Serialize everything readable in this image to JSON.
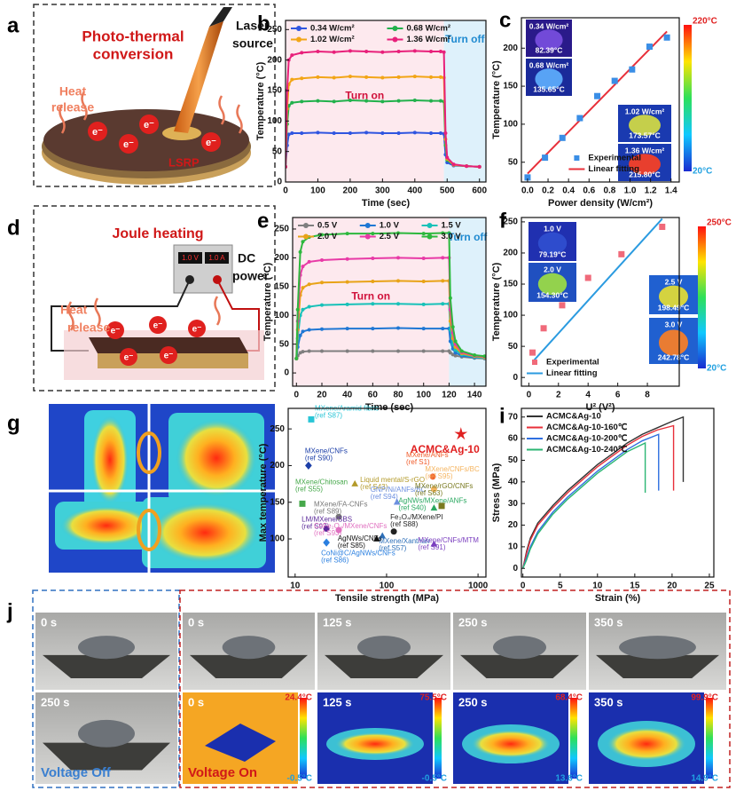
{
  "panel_letters": [
    "a",
    "b",
    "c",
    "d",
    "e",
    "f",
    "g",
    "h",
    "i",
    "j"
  ],
  "panel_a": {
    "title_lines": [
      "Photo-thermal",
      "conversion"
    ],
    "laser_lines": [
      "Laser",
      "source"
    ],
    "heat_lines": [
      "Heat",
      "release"
    ],
    "lsrp": "LSRP",
    "electron": "e⁻"
  },
  "panel_d": {
    "title": "Joule heating",
    "power_lines": [
      "DC",
      "power"
    ],
    "heat_lines": [
      "Heat",
      "release"
    ],
    "voltage": "1.0 V",
    "current": "1.0 A",
    "electron": "e⁻"
  },
  "panel_j": {
    "photos": [
      "0 s",
      "0 s",
      "125 s",
      "250 s",
      "350 s",
      "250 s"
    ],
    "voltage_off": "Voltage Off",
    "voltage_on": "Voltage On",
    "thermal": [
      {
        "time": "0 s",
        "max": "24.4°C",
        "min": "-0.5°C"
      },
      {
        "time": "125 s",
        "max": "75.5°C",
        "min": "-0.5°C"
      },
      {
        "time": "250 s",
        "max": "68.4°C",
        "min": "13.6°C"
      },
      {
        "time": "350 s",
        "max": "99.9°C",
        "min": "14.9°C"
      }
    ]
  },
  "chart_data": [
    {
      "type": "line",
      "markers": true,
      "xlabel": "Time (sec)",
      "ylabel": "Temperature (°C)",
      "xlim": [
        0,
        620
      ],
      "ylim": [
        0,
        265
      ],
      "xticks": [
        0,
        100,
        200,
        300,
        400,
        500,
        600
      ],
      "yticks": [
        0,
        50,
        100,
        150,
        200,
        250
      ],
      "legend": "upper left",
      "legend_columns": 2,
      "regions": [
        {
          "label": "Turn on",
          "from": 0,
          "to": 490,
          "color": "#fde9ee",
          "text_color": "#d0103a"
        },
        {
          "label": "Turn off",
          "from": 490,
          "to": 620,
          "color": "#def1fb",
          "text_color": "#1f8ad0"
        }
      ],
      "x": [
        0,
        5,
        10,
        20,
        50,
        100,
        150,
        200,
        250,
        300,
        350,
        400,
        450,
        480,
        490,
        495,
        500,
        520,
        560,
        600
      ],
      "series": [
        {
          "name": "0.34 W/cm²",
          "color": "#2f55e0",
          "values": [
            25,
            60,
            78,
            80,
            80,
            81,
            80,
            80,
            81,
            80,
            80,
            81,
            80,
            80,
            79,
            45,
            32,
            27,
            26,
            25
          ]
        },
        {
          "name": "0.68 W/cm²",
          "color": "#22b14c",
          "values": [
            25,
            95,
            125,
            130,
            132,
            133,
            132,
            134,
            133,
            132,
            133,
            134,
            133,
            133,
            132,
            60,
            36,
            28,
            26,
            25
          ]
        },
        {
          "name": "1.02 W/cm²",
          "color": "#f2a516",
          "values": [
            25,
            120,
            160,
            168,
            170,
            172,
            171,
            173,
            172,
            171,
            172,
            173,
            172,
            172,
            171,
            70,
            38,
            28,
            26,
            25
          ]
        },
        {
          "name": "1.36 W/cm²",
          "color": "#e8207a",
          "values": [
            25,
            150,
            200,
            208,
            212,
            214,
            213,
            215,
            214,
            213,
            214,
            215,
            214,
            214,
            213,
            80,
            40,
            29,
            26,
            25
          ]
        }
      ]
    },
    {
      "type": "scatter",
      "xlabel": "Power density (W/cm²)",
      "ylabel": "Temperature (°C)",
      "xlim": [
        -0.06,
        1.48
      ],
      "ylim": [
        24,
        240
      ],
      "xticks": [
        {
          "value": 0,
          "label": "0.0"
        },
        0.2,
        0.4,
        0.6,
        0.8,
        {
          "value": 1,
          "label": "1.0"
        },
        1.2,
        1.4
      ],
      "yticks": [
        50,
        100,
        150,
        200
      ],
      "legend": "lower center",
      "legend_columns": 1,
      "series": [
        {
          "name": "Experimental",
          "color": "#3a8ee6",
          "mode": "markers",
          "marker": "square",
          "x": [
            0,
            0.17,
            0.34,
            0.51,
            0.68,
            0.85,
            1.02,
            1.19,
            1.36
          ],
          "values": [
            30,
            56,
            82,
            108,
            137,
            157,
            172,
            202,
            214
          ]
        },
        {
          "name": "Linear fitting",
          "color": "#e8303a",
          "mode": "line",
          "x": [
            0,
            1.36
          ],
          "values": [
            35,
            222
          ]
        }
      ],
      "insets": [
        {
          "label": "0.34 W/cm²",
          "temp": "82.39°C"
        },
        {
          "label": "0.68 W/cm²",
          "temp": "135.65°C"
        },
        {
          "label": "1.02 W/cm²",
          "temp": "173.57°C"
        },
        {
          "label": "1.36 W/cm²",
          "temp": "215.80°C"
        }
      ],
      "colorbar": {
        "max": "220°C",
        "min": "20°C"
      }
    },
    {
      "type": "line",
      "markers": true,
      "xlabel": "Time (sec)",
      "ylabel": "Temperature (°C)",
      "xlim": [
        -3,
        149
      ],
      "ylim": [
        -23,
        270
      ],
      "xticks": [
        0,
        20,
        40,
        60,
        80,
        100,
        120,
        140
      ],
      "yticks": [
        0,
        50,
        100,
        150,
        200,
        250
      ],
      "legend": "upper left",
      "legend_columns": 3,
      "regions": [
        {
          "label": "Turn on",
          "from": -3,
          "to": 120,
          "color": "#fde9ee",
          "text_color": "#d0103a"
        },
        {
          "label": "Turn off",
          "from": 120,
          "to": 149,
          "color": "#def1fb",
          "text_color": "#1f8ad0"
        }
      ],
      "x": [
        0,
        1,
        3,
        5,
        10,
        20,
        40,
        60,
        80,
        100,
        115,
        120,
        121,
        123,
        125,
        130,
        140,
        148
      ],
      "series": [
        {
          "name": "0.5 V",
          "color": "#7f7f7f",
          "values": [
            25,
            30,
            35,
            37,
            38,
            38,
            38,
            38,
            38,
            38,
            38,
            38,
            35,
            32,
            30,
            28,
            26,
            25
          ]
        },
        {
          "name": "1.0 V",
          "color": "#1f77d4",
          "values": [
            25,
            45,
            65,
            72,
            75,
            76,
            77,
            77,
            78,
            77,
            77,
            77,
            55,
            42,
            35,
            30,
            27,
            26
          ]
        },
        {
          "name": "1.5 V",
          "color": "#17c1b8",
          "values": [
            25,
            60,
            100,
            110,
            115,
            118,
            119,
            120,
            120,
            119,
            120,
            120,
            75,
            50,
            40,
            32,
            28,
            26
          ]
        },
        {
          "name": "2.0 V",
          "color": "#e8a317",
          "values": [
            25,
            75,
            135,
            148,
            154,
            157,
            158,
            159,
            160,
            159,
            160,
            160,
            90,
            60,
            45,
            34,
            29,
            27
          ]
        },
        {
          "name": "2.5 V",
          "color": "#e83aa6",
          "values": [
            25,
            90,
            170,
            185,
            193,
            196,
            198,
            199,
            200,
            199,
            200,
            200,
            110,
            70,
            50,
            36,
            30,
            28
          ]
        },
        {
          "name": "3.0 V",
          "color": "#2db83d",
          "values": [
            25,
            110,
            210,
            228,
            236,
            240,
            242,
            242,
            243,
            242,
            243,
            243,
            130,
            80,
            55,
            38,
            31,
            29
          ]
        }
      ]
    },
    {
      "type": "scatter",
      "xlabel": "U² (V²)",
      "ylabel": "Temperature (°C)",
      "xlim": [
        -0.5,
        10.15
      ],
      "ylim": [
        -14,
        257
      ],
      "xticks": [
        0,
        2,
        4,
        6,
        8
      ],
      "yticks": [
        0,
        50,
        100,
        150,
        200,
        250
      ],
      "legend": "lower left",
      "legend_columns": 1,
      "series": [
        {
          "name": "Experimental",
          "color": "#f06a7a",
          "mode": "markers",
          "marker": "square",
          "x": [
            0.25,
            1,
            2.25,
            4,
            6.25,
            9
          ],
          "values": [
            40,
            79,
            116,
            160,
            198,
            242
          ]
        },
        {
          "name": "Linear fitting",
          "color": "#2b9be0",
          "mode": "line",
          "x": [
            0.25,
            9
          ],
          "values": [
            25,
            255
          ]
        }
      ],
      "insets": [
        {
          "label": "1.0 V",
          "temp": "79.19°C"
        },
        {
          "label": "2.0 V",
          "temp": "154.30°C"
        },
        {
          "label": "2.5 V",
          "temp": "198.49°C"
        },
        {
          "label": "3.0 V",
          "temp": "242.78°C"
        }
      ],
      "colorbar": {
        "max": "250°C",
        "min": "20°C"
      }
    },
    {
      "type": "scatter",
      "xscale": "log",
      "xlabel": "Tensile strength (MPa)",
      "ylabel": "Max temperature (°C)",
      "xlim": [
        8.4,
        1220
      ],
      "ylim": [
        48,
        278
      ],
      "xticks": [
        10,
        100,
        1000
      ],
      "yticks": [
        100,
        150,
        200,
        250
      ],
      "series": [
        {
          "name": "MXene/Aramid fibric",
          "ref": "(ref S87)",
          "color": "#29c5d6",
          "mode": "markers",
          "marker": "square",
          "x": [
            15
          ],
          "values": [
            263
          ]
        },
        {
          "name": "MXene/CNFs",
          "ref": "(ref S90)",
          "color": "#1c3fa8",
          "mode": "markers",
          "marker": "diamond",
          "x": [
            14
          ],
          "values": [
            200
          ]
        },
        {
          "name": "Liquid mental/S-rGO",
          "ref": "(ref S43)",
          "color": "#b39a2a",
          "mode": "markers",
          "marker": "triangle",
          "x": [
            45
          ],
          "values": [
            175
          ]
        },
        {
          "name": "ACMC&Ag-10",
          "color": "#e02020",
          "mode": "markers",
          "marker": "star",
          "x": [
            650
          ],
          "values": [
            243
          ]
        },
        {
          "name": "MXene/ANFs",
          "ref": "(ref S1)",
          "color": "#f05a28",
          "mode": "markers",
          "marker": "circle",
          "x": [
            320
          ],
          "values": [
            185
          ]
        },
        {
          "name": "MXene/CNFs/BC",
          "ref": "(ref S95)",
          "color": "#f5b561",
          "mode": "markers",
          "marker": "circle",
          "x": [
            330
          ],
          "values": [
            168
          ]
        },
        {
          "name": "GNP/Ni/ANFs/BC",
          "ref": "(ref S94)",
          "color": "#6c8fe0",
          "mode": "markers",
          "marker": "triangle",
          "x": [
            130
          ],
          "values": [
            150
          ]
        },
        {
          "name": "MXene/FA-CNFs",
          "ref": "(ref S89)",
          "color": "#777777",
          "mode": "markers",
          "marker": "circle",
          "x": [
            30
          ],
          "values": [
            130
          ]
        },
        {
          "name": "MXene/Chitosan",
          "ref": "(ref S55)",
          "color": "#46a84a",
          "mode": "markers",
          "marker": "square",
          "x": [
            12
          ],
          "values": [
            148
          ]
        },
        {
          "name": "LM/MXene/SBS",
          "ref": "(ref S92)",
          "color": "#5b2a9a",
          "mode": "markers",
          "marker": "circle",
          "x": [
            22
          ],
          "values": [
            114
          ]
        },
        {
          "name": "CoFe₂O₄/MXene/CNFs",
          "ref": "(ref S93)",
          "color": "#e070c0",
          "mode": "markers",
          "marker": "circle",
          "x": [
            30
          ],
          "values": [
            112
          ]
        },
        {
          "name": "Fe₃O₄/MXene/PI",
          "ref": "(ref S88)",
          "color": "#222222",
          "mode": "markers",
          "marker": "circle",
          "x": [
            120
          ],
          "values": [
            110
          ]
        },
        {
          "name": "MXene/Xanthan",
          "ref": "(ref S57)",
          "color": "#2d6fb8",
          "mode": "markers",
          "marker": "triangle",
          "x": [
            90
          ],
          "values": [
            104
          ]
        },
        {
          "name": "AgNWs/CNFs",
          "ref": "(ref S85)",
          "color": "#111111",
          "mode": "markers",
          "marker": "triangle",
          "x": [
            78
          ],
          "values": [
            100
          ]
        },
        {
          "name": "CoNi@C/AgNWs/CNFs",
          "ref": "(ref S86)",
          "color": "#2a7fe0",
          "mode": "markers",
          "marker": "diamond",
          "x": [
            22
          ],
          "values": [
            95
          ]
        },
        {
          "name": "MXene/rGO/CNFs",
          "ref": "(ref S63)",
          "color": "#7a7a20",
          "mode": "markers",
          "marker": "square",
          "x": [
            400
          ],
          "values": [
            145
          ]
        },
        {
          "name": "AgNWs/MXene/ANFs",
          "ref": "(ref S40)",
          "color": "#2aa860",
          "mode": "markers",
          "marker": "triangle",
          "x": [
            330
          ],
          "values": [
            142
          ]
        },
        {
          "name": "MXene/CNFs/MTM",
          "ref": "(ref S91)",
          "color": "#7b3fbf",
          "mode": "markers",
          "marker": "triangle",
          "x": [
            330
          ],
          "values": [
            93
          ]
        }
      ]
    },
    {
      "type": "line",
      "xlabel": "Strain (%)",
      "ylabel": "Stress (MPa)",
      "xlim": [
        -0.2,
        25.6
      ],
      "ylim": [
        -4,
        74
      ],
      "xticks": [
        0,
        5,
        10,
        15,
        20,
        25
      ],
      "yticks": [
        0,
        10,
        20,
        30,
        40,
        50,
        60,
        70
      ],
      "legend": "upper left",
      "legend_columns": 1,
      "series": [
        {
          "name": "ACMC&Ag-10",
          "color": "#333333",
          "x": [
            0,
            0.5,
            1,
            2,
            4,
            6,
            8,
            10,
            12,
            14,
            16,
            18,
            20,
            21.5,
            21.5
          ],
          "values": [
            0,
            8,
            14,
            21,
            29,
            36,
            42,
            48,
            53,
            58,
            62,
            65,
            68,
            70,
            40
          ]
        },
        {
          "name": "ACMC&Ag-10-160℃",
          "color": "#e8303a",
          "x": [
            0,
            0.5,
            1,
            2,
            4,
            6,
            8,
            10,
            12,
            14,
            16,
            18,
            20.2,
            20.2
          ],
          "values": [
            0,
            7,
            13,
            20,
            28,
            35,
            41,
            47,
            52,
            57,
            61,
            64,
            66,
            36
          ]
        },
        {
          "name": "ACMC&Ag-10-200℃",
          "color": "#2f6fe0",
          "x": [
            0,
            0.5,
            1,
            2,
            4,
            6,
            8,
            10,
            12,
            14,
            16,
            18.2,
            18.2
          ],
          "values": [
            0,
            5,
            10,
            17,
            26,
            33,
            39,
            45,
            50,
            55,
            59,
            62,
            36
          ]
        },
        {
          "name": "ACMC&Ag-10-240℃",
          "color": "#2bb673",
          "x": [
            0,
            0.5,
            1,
            2,
            4,
            6,
            8,
            10,
            12,
            14,
            16.4,
            16.4
          ],
          "values": [
            0,
            4,
            9,
            16,
            25,
            32,
            38,
            44,
            49,
            54,
            58,
            35
          ]
        }
      ]
    }
  ]
}
